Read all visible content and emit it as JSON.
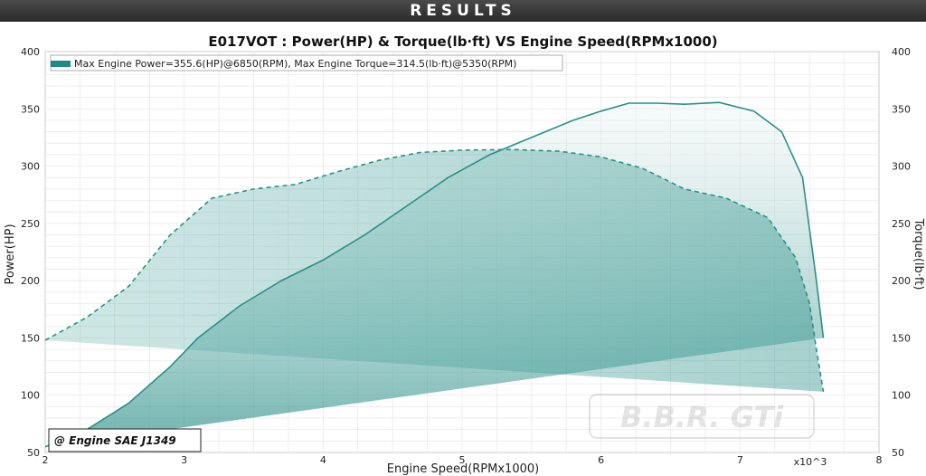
{
  "header": {
    "title": "RESULTS"
  },
  "watermark": "B.B.R. GTi",
  "note": "@ Engine SAE J1349",
  "chart_data": {
    "type": "line",
    "title": "E017VOT : Power(HP) & Torque(lb·ft) VS Engine Speed(RPMx1000)",
    "xlabel": "Engine Speed(RPMx1000)",
    "ylabel_left": "Power(HP)",
    "ylabel_right": "Torque(lb·ft)",
    "x_multiplier": "x10^3",
    "xlim": [
      2,
      8
    ],
    "ylim": [
      50,
      400
    ],
    "x_ticks": [
      2,
      3,
      4,
      5,
      6,
      7,
      8
    ],
    "y_ticks": [
      50,
      100,
      150,
      200,
      250,
      300,
      350,
      400
    ],
    "grid": true,
    "legend": {
      "placement": "top-left",
      "text": "Max Engine Power=355.6(HP)@6850(RPM), Max Engine Torque=314.5(lb·ft)@5350(RPM)",
      "color": "#1f8a84"
    },
    "series": [
      {
        "style": "solid",
        "color": "#2a8f88",
        "x": [
          2.0,
          2.3,
          2.6,
          2.9,
          3.1,
          3.4,
          3.7,
          4.0,
          4.3,
          4.6,
          4.9,
          5.2,
          5.5,
          5.8,
          6.0,
          6.2,
          6.4,
          6.6,
          6.85,
          7.1,
          7.3,
          7.45,
          7.55,
          7.6
        ],
        "y": [
          55,
          70,
          93,
          125,
          150,
          178,
          200,
          218,
          240,
          265,
          290,
          310,
          325,
          340,
          348,
          355,
          355,
          354,
          355.6,
          348,
          330,
          290,
          200,
          150
        ]
      },
      {
        "style": "dashed",
        "color": "#2a8f88",
        "x": [
          2.0,
          2.3,
          2.6,
          2.9,
          3.2,
          3.5,
          3.8,
          4.1,
          4.4,
          4.7,
          5.0,
          5.35,
          5.7,
          6.0,
          6.3,
          6.6,
          6.9,
          7.2,
          7.4,
          7.5,
          7.55,
          7.6
        ],
        "y": [
          148,
          168,
          195,
          240,
          272,
          280,
          284,
          295,
          305,
          312,
          314,
          314.5,
          313,
          308,
          298,
          280,
          272,
          255,
          220,
          180,
          140,
          103
        ]
      }
    ]
  },
  "colors": {
    "accent": "#2a8f88",
    "plot_bg": "#ffffff",
    "grid": "#e6e6e6"
  }
}
